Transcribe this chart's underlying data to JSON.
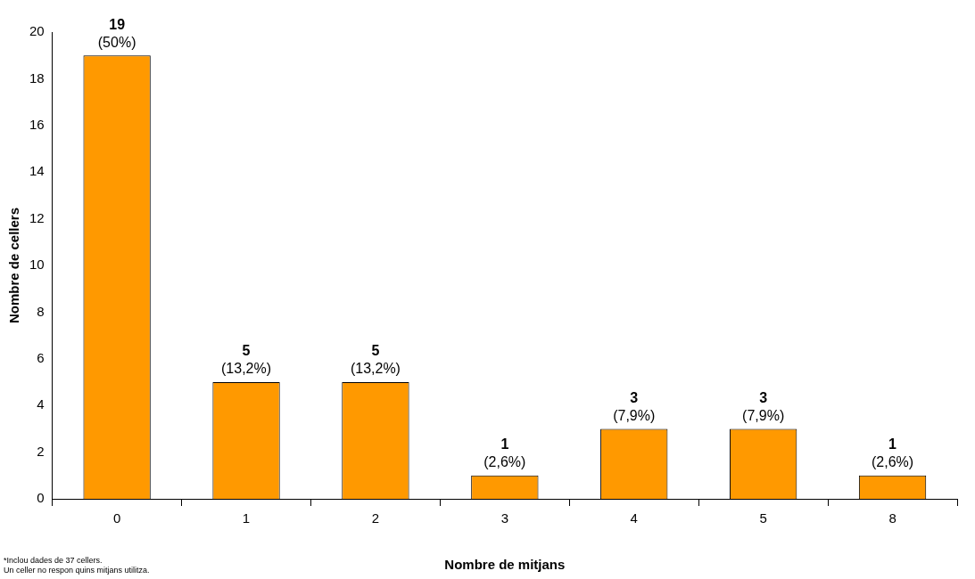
{
  "chart_data": {
    "type": "bar",
    "xlabel": "Nombre de mitjans",
    "ylabel": "Nombre de cellers",
    "categories": [
      "0",
      "1",
      "2",
      "3",
      "4",
      "5",
      "8"
    ],
    "values": [
      19,
      5,
      5,
      1,
      3,
      3,
      1
    ],
    "value_labels": [
      "19 (50%)",
      "5 (13,2%)",
      "5 (13,2%)",
      "1 (2,6%)",
      "3 (7,9%)",
      "3 (7,9%)",
      "1 (2,6%)"
    ],
    "color": "#ff9900",
    "ylim": [
      0,
      20
    ],
    "yticks": [
      0,
      2,
      4,
      6,
      8,
      10,
      12,
      14,
      16,
      18,
      20
    ],
    "grid": false,
    "legend": false,
    "annotations": [
      "*Inclou dades de 37 cellers.",
      "Un celler no respon quins mitjans utilitza."
    ]
  }
}
